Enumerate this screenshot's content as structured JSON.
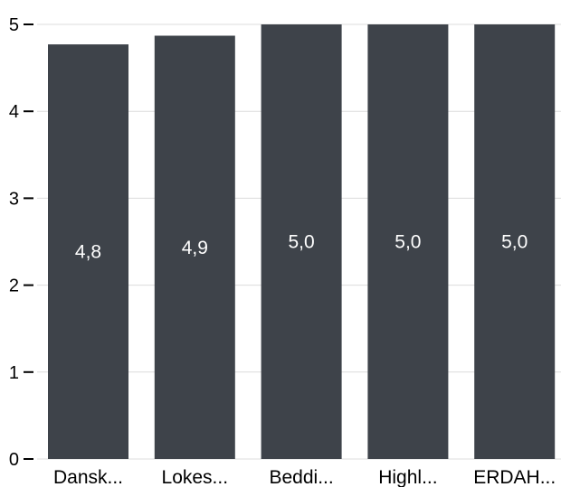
{
  "chart_data": {
    "type": "bar",
    "categories": [
      "Dansk...",
      "Lokes...",
      "Beddi...",
      "Highl...",
      "ERDAH..."
    ],
    "values": [
      4.77,
      4.87,
      5.0,
      5.0,
      5.0
    ],
    "data_labels": [
      "4,8",
      "4,9",
      "5,0",
      "5,0",
      "5,0"
    ],
    "y_ticks": [
      0,
      1,
      2,
      3,
      4,
      5
    ],
    "y_tick_labels": [
      "0",
      "1",
      "2",
      "3",
      "4",
      "5"
    ],
    "ylim": [
      0,
      5
    ],
    "grid": true,
    "bar_color": "#3e434a",
    "title": "",
    "xlabel": "",
    "ylabel": ""
  }
}
